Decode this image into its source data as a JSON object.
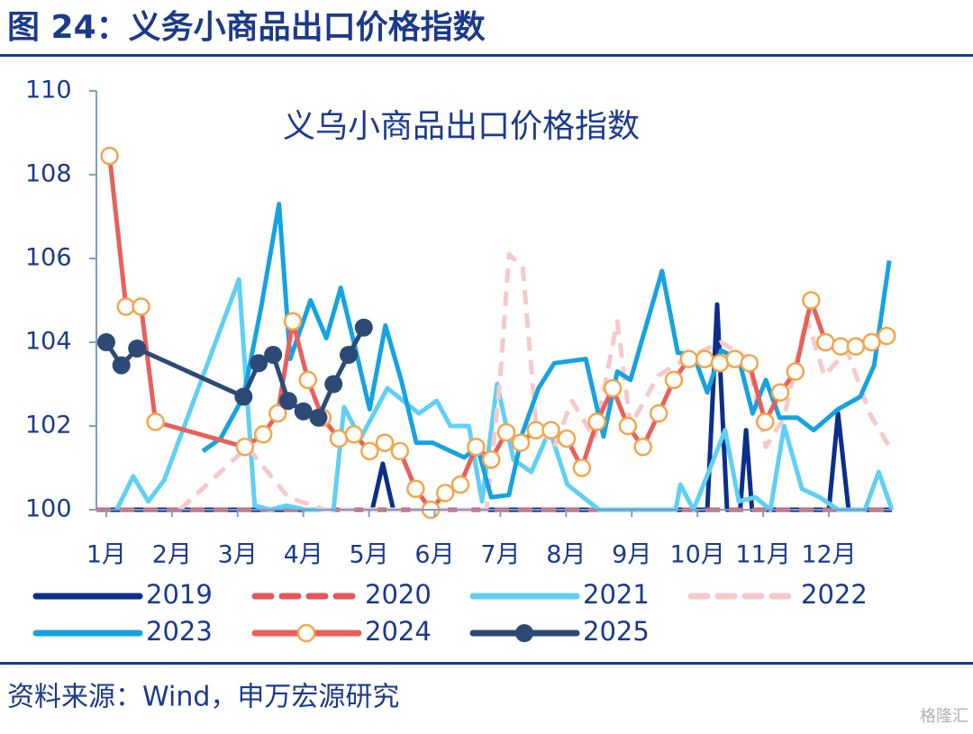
{
  "header": {
    "title": "图 24：义务小商品出口价格指数"
  },
  "chart_data": {
    "type": "line",
    "title": "义乌小商品出口价格指数",
    "xlim": [
      0.85,
      12.96
    ],
    "xticks": [
      {
        "value": 1,
        "label": "1月"
      },
      {
        "value": 2,
        "label": "2月"
      },
      {
        "value": 3,
        "label": "3月"
      },
      {
        "value": 4,
        "label": "4月"
      },
      {
        "value": 5,
        "label": "5月"
      },
      {
        "value": 6,
        "label": "6月"
      },
      {
        "value": 7,
        "label": "7月"
      },
      {
        "value": 8,
        "label": "8月"
      },
      {
        "value": 9,
        "label": "9月"
      },
      {
        "value": 10,
        "label": "10月"
      },
      {
        "value": 11,
        "label": "11月"
      },
      {
        "value": 12,
        "label": "12月"
      }
    ],
    "ylim": [
      100,
      110
    ],
    "yticks": [
      100,
      102,
      104,
      106,
      108,
      110
    ],
    "series": [
      {
        "name": "2019",
        "color": "#0b2f8a",
        "dashed": false,
        "x": [
          0.85,
          5.05,
          5.21,
          5.37,
          10.15,
          10.3,
          10.45,
          10.65,
          10.74,
          10.83,
          12.0,
          12.14,
          12.3,
          12.96
        ],
        "values": [
          100,
          100,
          101.1,
          100,
          100,
          104.9,
          100,
          100,
          101.9,
          100,
          100,
          102.3,
          100,
          100
        ]
      },
      {
        "name": "2020",
        "color": "#e8555a",
        "dashed": true,
        "x": [
          0.85,
          12.96
        ],
        "values": [
          100,
          100
        ]
      },
      {
        "name": "2021",
        "color": "#5fd0f5",
        "dashed": false,
        "x": [
          1.16,
          1.41,
          1.64,
          1.88,
          3.02,
          3.26,
          3.5,
          3.74,
          4.04,
          4.46,
          4.62,
          4.87,
          5.28,
          5.76,
          6.03,
          6.24,
          6.52,
          6.72,
          6.95,
          7.2,
          7.47,
          7.75,
          8.02,
          8.5,
          9.67,
          9.74,
          9.94,
          10.22,
          10.42,
          10.63,
          10.88,
          11.11,
          11.32,
          11.59,
          11.86,
          12.14,
          12.55,
          12.76,
          12.96
        ],
        "values": [
          100,
          100.8,
          100.2,
          100.7,
          105.5,
          100.1,
          100,
          100.1,
          100,
          100,
          102.45,
          101.7,
          102.9,
          102.3,
          102.6,
          102.0,
          102.0,
          100.2,
          103.0,
          101.2,
          100.9,
          101.9,
          100.6,
          100,
          100,
          100.6,
          100,
          101.1,
          101.9,
          100.2,
          100.3,
          100,
          102.0,
          100.5,
          100.3,
          100,
          100,
          100.9,
          100
        ]
      },
      {
        "name": "2022",
        "color": "#f7c9cb",
        "dashed": true,
        "x": [
          2.12,
          3.15,
          3.77,
          4.32,
          6.79,
          6.99,
          7.13,
          7.34,
          7.54,
          7.82,
          8.09,
          8.43,
          8.78,
          8.98,
          9.4,
          9.81,
          10.36,
          10.77,
          11.04,
          11.32,
          11.66,
          11.93,
          12.28,
          12.62,
          12.96
        ],
        "values": [
          100,
          101.5,
          100.3,
          100,
          100,
          103,
          106.1,
          105.8,
          102.1,
          101.5,
          102.6,
          101.7,
          104.5,
          102.0,
          103.2,
          103.6,
          104.0,
          103.6,
          101.5,
          102.2,
          104.6,
          103.2,
          103.8,
          102.3,
          101.4
        ]
      },
      {
        "name": "2023",
        "color": "#15a3e0",
        "dashed": false,
        "x": [
          2.47,
          2.74,
          3.09,
          3.36,
          3.63,
          3.8,
          4.11,
          4.35,
          4.57,
          4.8,
          5.01,
          5.25,
          5.49,
          5.72,
          5.97,
          6.24,
          6.45,
          6.65,
          6.86,
          7.13,
          7.34,
          7.58,
          7.82,
          8.3,
          8.57,
          8.78,
          8.98,
          9.46,
          9.7,
          9.94,
          10.15,
          10.36,
          10.63,
          10.84,
          11.04,
          11.25,
          11.52,
          11.77,
          12.14,
          12.48,
          12.69,
          12.92
        ],
        "values": [
          101.4,
          101.7,
          102.7,
          104.85,
          107.3,
          103.6,
          105.0,
          104.1,
          105.3,
          103.8,
          102.4,
          104.4,
          103.1,
          101.6,
          101.6,
          101.4,
          101.25,
          101.5,
          100.3,
          100.35,
          101.85,
          102.9,
          103.5,
          103.6,
          101.75,
          103.3,
          103.1,
          105.7,
          103.75,
          103.7,
          102.8,
          103.8,
          103.6,
          102.3,
          103.1,
          102.2,
          102.2,
          101.9,
          102.4,
          102.7,
          103.45,
          105.95
        ]
      },
      {
        "name": "2024",
        "color": "#e8605a",
        "dashed": false,
        "marker": "ring",
        "marker_color": "#f5a54a",
        "x": [
          1.05,
          1.3,
          1.53,
          1.75,
          3.11,
          3.39,
          3.61,
          3.84,
          4.07,
          4.29,
          4.54,
          4.77,
          5.01,
          5.24,
          5.47,
          5.71,
          5.94,
          6.16,
          6.39,
          6.63,
          6.86,
          7.09,
          7.31,
          7.54,
          7.77,
          8.01,
          8.24,
          8.47,
          8.71,
          8.94,
          9.17,
          9.41,
          9.64,
          9.87,
          10.11,
          10.34,
          10.57,
          10.79,
          11.03,
          11.26,
          11.49,
          11.73,
          11.95,
          12.18,
          12.41,
          12.65,
          12.88
        ],
        "values": [
          108.45,
          104.85,
          104.85,
          102.1,
          101.5,
          101.8,
          102.3,
          104.5,
          103.1,
          102.2,
          101.7,
          101.8,
          101.4,
          101.6,
          101.4,
          100.5,
          100.0,
          100.4,
          100.6,
          101.5,
          101.2,
          101.85,
          101.6,
          101.9,
          101.9,
          101.7,
          101.0,
          102.1,
          102.9,
          102.0,
          101.5,
          102.3,
          103.1,
          103.6,
          103.6,
          103.5,
          103.6,
          103.5,
          102.1,
          102.8,
          103.3,
          105.0,
          104.0,
          103.9,
          103.9,
          104.0,
          104.15
        ]
      },
      {
        "name": "2025",
        "color": "#2c4a75",
        "dashed": false,
        "marker": "dot",
        "marker_color": "#2c4a75",
        "x": [
          1.0,
          1.23,
          1.47,
          3.09,
          3.32,
          3.54,
          3.77,
          4.0,
          4.23,
          4.46,
          4.69,
          4.92
        ],
        "values": [
          104.0,
          103.45,
          103.85,
          102.7,
          103.5,
          103.7,
          102.6,
          102.35,
          102.2,
          103.0,
          103.7,
          104.35
        ]
      }
    ]
  },
  "footer": {
    "source": "资料来源：Wind，申万宏源研究",
    "watermark": "格隆汇"
  }
}
